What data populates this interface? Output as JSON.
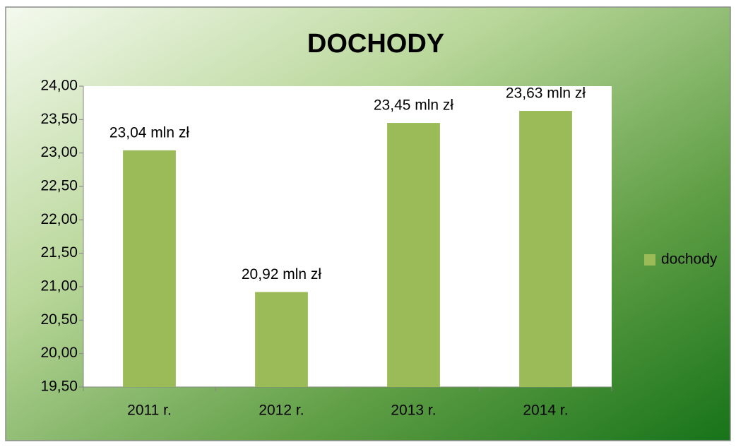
{
  "chart_data": {
    "type": "bar",
    "title": "DOCHODY",
    "categories": [
      "2011 r.",
      "2012 r.",
      "2013 r.",
      "2014 r."
    ],
    "series": [
      {
        "name": "dochody",
        "color": "#9bbb59",
        "values": [
          23.04,
          20.92,
          23.45,
          23.63
        ],
        "value_labels": [
          "23,04 mln zł",
          "20,92 mln zł",
          "23,45 mln zł",
          "23,63 mln zł"
        ]
      }
    ],
    "ylim": [
      19.5,
      24
    ],
    "yticks": [
      {
        "value": 19.5,
        "label": "19,50"
      },
      {
        "value": 20,
        "label": "20,00"
      },
      {
        "value": 20.5,
        "label": "20,50"
      },
      {
        "value": 21,
        "label": "21,00"
      },
      {
        "value": 21.5,
        "label": "21,50"
      },
      {
        "value": 22,
        "label": "22,00"
      },
      {
        "value": 22.5,
        "label": "22,50"
      },
      {
        "value": 23,
        "label": "23,00"
      },
      {
        "value": 23.5,
        "label": "23,50"
      },
      {
        "value": 24,
        "label": "24,00"
      }
    ],
    "grid": false,
    "legend": "right"
  }
}
